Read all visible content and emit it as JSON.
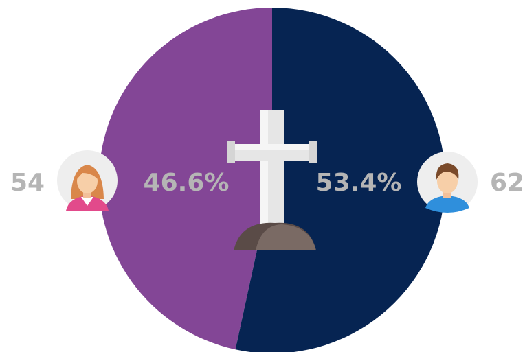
{
  "chart_data": {
    "type": "pie",
    "values": [
      46.6,
      53.4
    ],
    "value_labels": [
      "46.6%",
      "53.4%"
    ],
    "colors": [
      "#834696",
      "#062452"
    ],
    "counts": [
      54,
      62
    ]
  }
}
